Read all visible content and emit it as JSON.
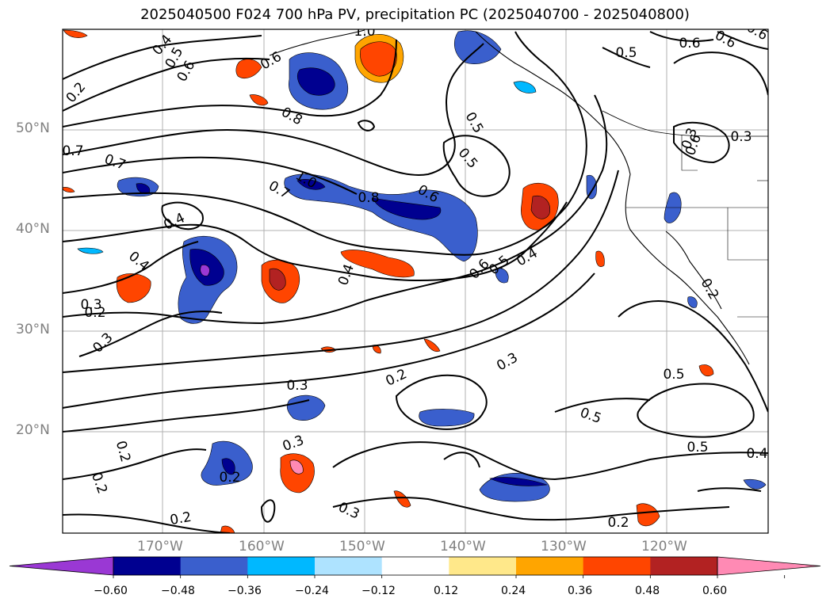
{
  "title": "2025040500 F024 700 hPa PV, precipitation PC (2025040700 - 2025040800)",
  "lat_labels": [
    "50°N",
    "40°N",
    "30°N",
    "20°N"
  ],
  "lon_labels": [
    "170°W",
    "160°W",
    "150°W",
    "140°W",
    "130°W",
    "120°W"
  ],
  "contour_labels": [
    "0.2",
    "0.4",
    "0.5",
    "0.6",
    "0.7",
    "1.0",
    "0.8",
    "0.6",
    "0.5",
    "0.7",
    "0.7",
    "1.0",
    "0.8",
    "0.6",
    "0.6",
    "0.5",
    "0.4",
    "0.5",
    "0.6",
    "0.5",
    "0.4",
    "0.6",
    "0.4",
    "0.4",
    "0.3",
    "0.3",
    "0.5",
    "0.3",
    "0.2",
    "0.3",
    "0.3",
    "0.2",
    "0.2",
    "0.2",
    "0.2",
    "0.5",
    "0.5",
    "0.4",
    "0.3",
    "0.2",
    "0.2",
    "0.3",
    "0.3",
    "0.6",
    "0.6",
    "0.2"
  ],
  "colorbar": {
    "ticks": [
      "−0.60",
      "−0.48",
      "−0.36",
      "−0.24",
      "−0.12",
      "0.12",
      "0.24",
      "0.36",
      "0.48",
      "0.60"
    ],
    "colors": [
      "#9a38d4",
      "#000090",
      "#3a5fcd",
      "#00b8ff",
      "#aee3ff",
      "#ffffff",
      "#ffe88a",
      "#ffa500",
      "#ff4500",
      "#b22222",
      "#ff8ab4"
    ]
  }
}
